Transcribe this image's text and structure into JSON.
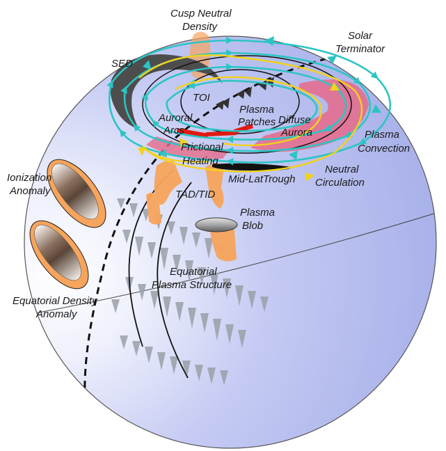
{
  "labels": {
    "cusp_neutral_density": [
      "Cusp Neutral",
      "Density"
    ],
    "solar_terminator": [
      "Solar",
      "Terminator"
    ],
    "sed": "SED",
    "toi": "TOI",
    "auroral_arcs": [
      "Auroral",
      "Arcs"
    ],
    "plasma_patches": [
      "Plasma",
      "Patches"
    ],
    "diffuse_aurora": [
      "Diffuse",
      "Aurora"
    ],
    "plasma_convection": [
      "Plasma",
      "Convection"
    ],
    "frictional_heating": [
      "Frictional",
      "Heating"
    ],
    "mid_lat_trough": "Mid-LatTrough",
    "neutral_circulation": [
      "Neutral",
      "Circulation"
    ],
    "ionization_anomaly": [
      "Ionization",
      "Anomaly"
    ],
    "tad_tid": "TAD/TID",
    "plasma_blob": [
      "Plasma",
      "Blob"
    ],
    "equatorial_plasma_structure": [
      "Equatorial",
      "Plasma Structure"
    ],
    "equatorial_density_anomaly": [
      "Equatorial Density",
      "Anomaly"
    ]
  },
  "colors": {
    "sphere": "#b9c1ef",
    "convection": "#2cc4c4",
    "neutral_wind": "#f2d21a",
    "aurora_pink": "#e66a8a",
    "auroral_arc": "#e01a10",
    "orange": "#f7a45c",
    "plume": "#9aa0a8",
    "sed": "#4d4d4d"
  }
}
